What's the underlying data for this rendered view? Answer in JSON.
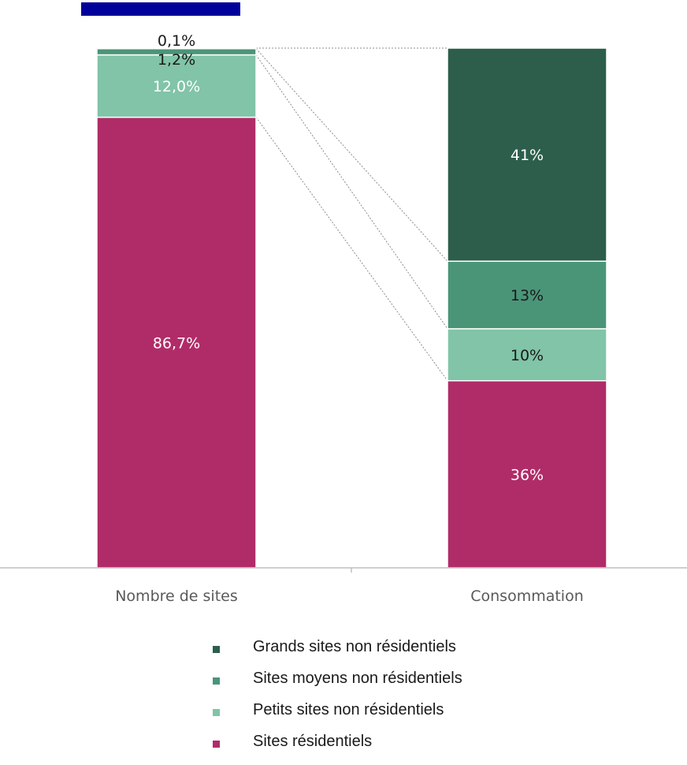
{
  "colors": {
    "grands": "#2d5e4c",
    "moyens": "#4a9578",
    "petits": "#81c4a8",
    "residentiels": "#b02c68",
    "blue_block": "#00009a"
  },
  "chart_data": {
    "type": "bar",
    "stacked": true,
    "normalized": true,
    "categories": [
      "Nombre de sites",
      "Consommation"
    ],
    "series": [
      {
        "name": "Sites résidentiels",
        "values": [
          86.7,
          36
        ],
        "labels": [
          "86,7%",
          "36%"
        ],
        "color": "#b02c68"
      },
      {
        "name": "Petits sites non résidentiels",
        "values": [
          12.0,
          10
        ],
        "labels": [
          "12,0%",
          "10%"
        ],
        "color": "#81c4a8"
      },
      {
        "name": "Sites moyens non résidentiels",
        "values": [
          1.2,
          13
        ],
        "labels": [
          "1,2%",
          "13%"
        ],
        "color": "#4a9578"
      },
      {
        "name": "Grands sites non résidentiels",
        "values": [
          0.1,
          41
        ],
        "labels": [
          "0,1%",
          "41%"
        ],
        "color": "#2d5e4c"
      }
    ],
    "ylim": [
      0,
      100
    ],
    "grid": false,
    "legend_position": "bottom",
    "connector_lines": true
  },
  "legend": {
    "items": [
      {
        "label": "Grands sites non résidentiels",
        "color": "#2d5e4c"
      },
      {
        "label": "Sites moyens non résidentiels",
        "color": "#4a9578"
      },
      {
        "label": "Petits sites non résidentiels",
        "color": "#81c4a8"
      },
      {
        "label": "Sites résidentiels",
        "color": "#b02c68"
      }
    ]
  }
}
